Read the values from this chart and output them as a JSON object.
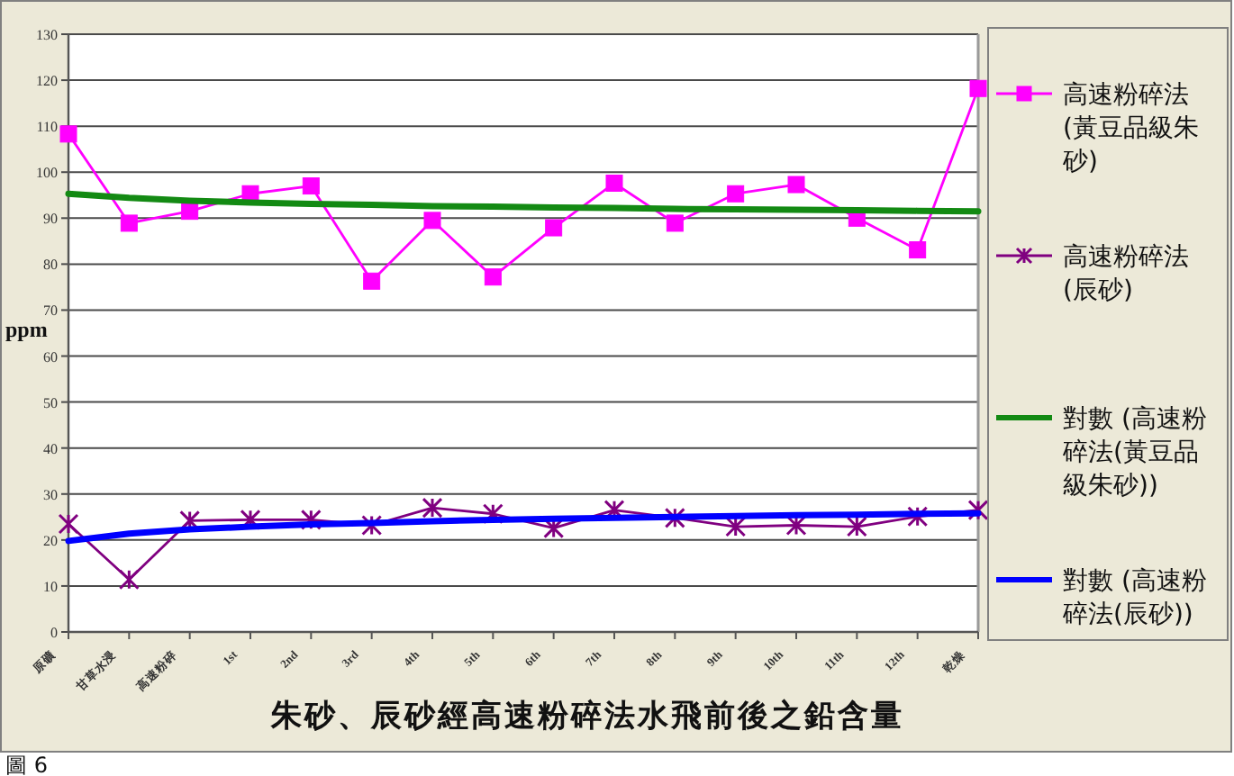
{
  "chart_data": {
    "type": "line",
    "title": "朱砂、辰砂經高速粉碎法水飛前後之鉛含量",
    "ylabel": "ppm",
    "categories": [
      "原礦",
      "甘草水浸",
      "高速粉碎",
      "1st",
      "2nd",
      "3rd",
      "4th",
      "5th",
      "6th",
      "7th",
      "8th",
      "9th",
      "10th",
      "11th",
      "12th",
      "乾燥"
    ],
    "series": [
      {
        "name": "高速粉碎法(黃豆品級朱砂)",
        "color": "#ff00ff",
        "marker": "square",
        "values": [
          108.3,
          88.9,
          91.5,
          95.3,
          97,
          76.3,
          89.5,
          77.2,
          87.9,
          97.6,
          88.9,
          95.3,
          97.3,
          90,
          83.1,
          118.2
        ]
      },
      {
        "name": "高速粉碎法(辰砂)",
        "color": "#800080",
        "marker": "cross",
        "values": [
          23.5,
          11.4,
          24.2,
          24.4,
          24.4,
          23.2,
          27,
          25.7,
          22.6,
          26.5,
          24.8,
          22.9,
          23.2,
          22.9,
          25.1,
          26.5
        ]
      },
      {
        "name": "對數 (高速粉碎法(黃豆品級朱砂))",
        "color": "#138a13",
        "marker": "none",
        "values": [
          95.3,
          94.4,
          93.8,
          93.4,
          93.1,
          92.9,
          92.6,
          92.5,
          92.3,
          92.2,
          92,
          91.9,
          91.8,
          91.7,
          91.6,
          91.5
        ]
      },
      {
        "name": "對數 (高速粉碎法(辰砂))",
        "color": "#0000ff",
        "marker": "none",
        "values": [
          19.8,
          21.4,
          22.3,
          22.9,
          23.4,
          23.7,
          24.1,
          24.4,
          24.6,
          24.8,
          25,
          25.2,
          25.4,
          25.5,
          25.7,
          25.8
        ]
      }
    ],
    "ylim": [
      0,
      130
    ],
    "yticks": [
      0,
      10,
      20,
      30,
      40,
      50,
      60,
      70,
      80,
      90,
      100,
      110,
      120,
      130
    ],
    "grid": "y",
    "legend": "right",
    "annotations": [
      "圖 6"
    ]
  }
}
